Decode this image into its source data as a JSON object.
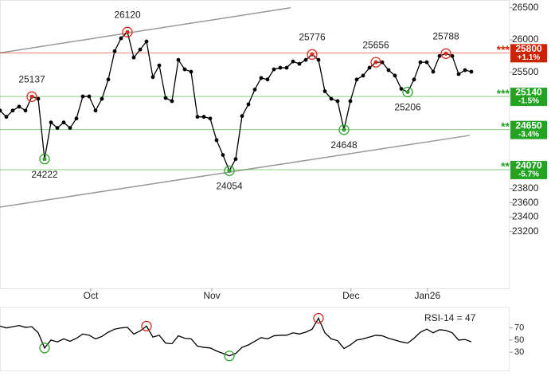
{
  "chart_data": [
    {
      "type": "line",
      "log": true,
      "color": "#000000",
      "x": [
        0,
        1,
        2,
        3,
        4,
        5,
        6,
        7,
        8,
        9,
        10,
        11,
        12,
        13,
        14,
        15,
        16,
        17,
        18,
        19,
        20,
        21,
        22,
        23,
        24,
        25,
        26,
        27,
        28,
        29,
        30,
        31,
        32,
        33,
        34,
        35,
        36,
        37,
        38,
        39,
        40,
        41,
        42,
        43,
        44,
        45,
        46,
        47,
        48,
        49,
        50,
        51,
        52,
        53,
        54,
        55,
        56,
        57,
        58,
        59,
        60,
        61,
        62,
        63,
        64,
        65,
        66,
        67,
        68,
        69,
        70,
        71,
        72,
        73,
        74
      ],
      "values": [
        24930,
        24837,
        24930,
        24988,
        24930,
        25137,
        25105,
        24222,
        24755,
        24673,
        24755,
        24673,
        24813,
        25140,
        25140,
        24930,
        25105,
        25394,
        25825,
        26024,
        26120,
        25728,
        25850,
        25975,
        25430,
        25608,
        25117,
        25070,
        25692,
        25548,
        25512,
        24837,
        24837,
        24813,
        24495,
        24280,
        24054,
        24222,
        24849,
        25023,
        25243,
        25418,
        25394,
        25548,
        25572,
        25572,
        25668,
        25632,
        25692,
        25776,
        25692,
        25218,
        25105,
        25070,
        24648,
        25070,
        25394,
        25453,
        25572,
        25656,
        25656,
        25536,
        25453,
        25253,
        25206,
        25394,
        25656,
        25656,
        25512,
        25752,
        25788,
        25752,
        25476,
        25536,
        25512
      ],
      "xlim": [
        0,
        80
      ],
      "xticks": [
        {
          "value": 14.25,
          "label": "Oct"
        },
        {
          "value": 33.25,
          "label": "Nov"
        },
        {
          "value": 55.1,
          "label": "Dec"
        },
        {
          "value": 67.1,
          "label": "Jan26"
        }
      ],
      "ylim": [
        22430,
        26623
      ],
      "yticks": [
        26500,
        26000,
        25500,
        23800,
        23600,
        23400,
        23200
      ],
      "annotations": [
        {
          "x": 5,
          "label": "25137",
          "color": "#d62b1f",
          "placement": "above"
        },
        {
          "x": 7,
          "label": "24222",
          "color": "#2aa52a",
          "placement": "below"
        },
        {
          "x": 20,
          "label": "26120",
          "color": "#d62b1f",
          "placement": "above"
        },
        {
          "x": 36,
          "label": "24054",
          "color": "#2aa52a",
          "placement": "below"
        },
        {
          "x": 49,
          "label": "25776",
          "color": "#d62b1f",
          "placement": "above"
        },
        {
          "x": 54,
          "label": "24648",
          "color": "#2aa52a",
          "placement": "below"
        },
        {
          "x": 59,
          "label": "25656",
          "color": "#d62b1f",
          "placement": "above"
        },
        {
          "x": 64,
          "label": "25206",
          "color": "#2aa52a",
          "placement": "below"
        },
        {
          "x": 70,
          "label": "25788",
          "color": "#d62b1f",
          "placement": "above"
        }
      ],
      "levels": [
        {
          "value": 25800,
          "stars": "***",
          "change": "+1.1%",
          "color": "#cc2200"
        },
        {
          "value": 25140,
          "stars": "***",
          "change": "-1.5%",
          "color": "#22a322"
        },
        {
          "value": 24650,
          "stars": "**",
          "change": "-3.4%",
          "color": "#22a322"
        },
        {
          "value": 24070,
          "stars": "**",
          "change": "-5.7%",
          "color": "#22a322"
        }
      ],
      "trendlines": [
        {
          "x": [
            0,
            45.6
          ],
          "values": [
            25800,
            26500
          ]
        },
        {
          "x": [
            0,
            73.75
          ],
          "values": [
            23540,
            24565
          ]
        }
      ]
    },
    {
      "type": "line",
      "title": "RSI-14 = 47",
      "color": "#000000",
      "x": [
        0,
        1,
        2,
        3,
        4,
        5,
        6,
        7,
        8,
        9,
        10,
        11,
        12,
        13,
        14,
        15,
        16,
        17,
        18,
        19,
        20,
        21,
        22,
        23,
        24,
        25,
        26,
        27,
        28,
        29,
        30,
        31,
        32,
        33,
        34,
        35,
        36,
        37,
        38,
        39,
        40,
        41,
        42,
        43,
        44,
        45,
        46,
        47,
        48,
        49,
        50,
        51,
        52,
        53,
        54,
        55,
        56,
        57,
        58,
        59,
        60,
        61,
        62,
        63,
        64,
        65,
        66,
        67,
        68,
        69,
        70,
        71,
        72,
        73,
        74
      ],
      "values": [
        73,
        70,
        72,
        74,
        71,
        72,
        62,
        37,
        50,
        47,
        52,
        48,
        53,
        60,
        58,
        52,
        56,
        63,
        68,
        70,
        71,
        60,
        65,
        73,
        55,
        58,
        45,
        44,
        57,
        53,
        52,
        40,
        38,
        37,
        32,
        28,
        24,
        28,
        38,
        42,
        48,
        54,
        52,
        57,
        58,
        58,
        62,
        60,
        63,
        68,
        86,
        62,
        52,
        49,
        36,
        42,
        50,
        52,
        55,
        58,
        57,
        53,
        50,
        47,
        45,
        53,
        63,
        68,
        62,
        67,
        66,
        62,
        50,
        51,
        47
      ],
      "xlim": [
        0,
        80
      ],
      "ylim": [
        0,
        105
      ],
      "yticks": [
        30,
        50,
        70
      ],
      "markers": [
        {
          "x": 7,
          "color": "#2aa52a"
        },
        {
          "x": 23,
          "color": "#d62b1f"
        },
        {
          "x": 36,
          "color": "#2aa52a"
        },
        {
          "x": 50,
          "color": "#d62b1f"
        }
      ]
    }
  ]
}
